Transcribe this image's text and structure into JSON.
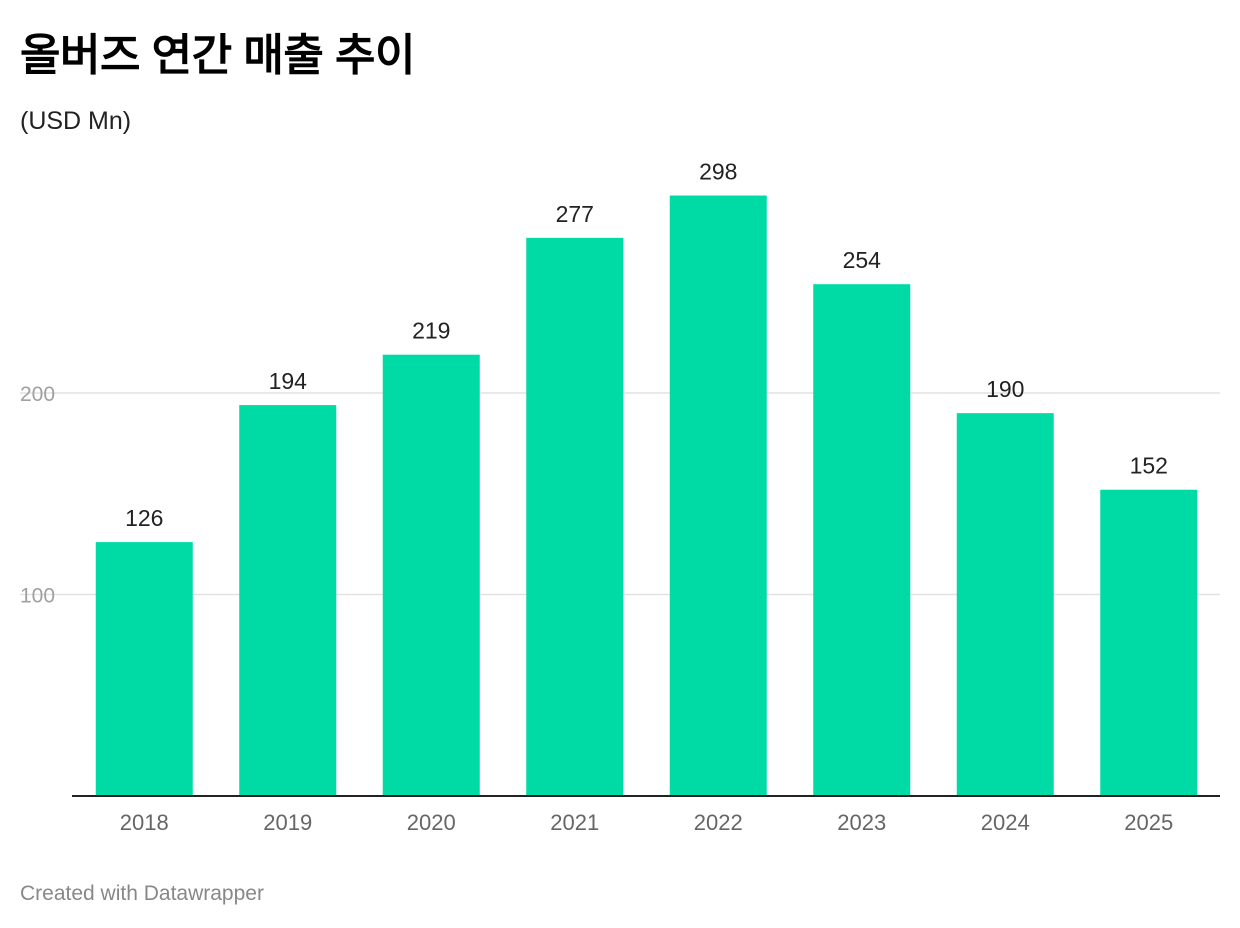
{
  "title": "올버즈 연간 매출 추이",
  "subtitle": "(USD Mn)",
  "footer": "Created with Datawrapper",
  "chart_data": {
    "type": "bar",
    "title": "올버즈 연간 매출 추이",
    "subtitle": "(USD Mn)",
    "categories": [
      "2018",
      "2019",
      "2020",
      "2021",
      "2022",
      "2023",
      "2024",
      "2025"
    ],
    "values": [
      126,
      194,
      219,
      277,
      298,
      254,
      190,
      152
    ],
    "data_labels": [
      "126",
      "194",
      "219",
      "277",
      "298",
      "254",
      "190",
      "152"
    ],
    "xlabel": "",
    "ylabel": "",
    "ylim": [
      0,
      300
    ],
    "yticks": [
      100,
      200
    ],
    "ytick_labels": [
      "100",
      "200"
    ],
    "grid": true,
    "legend": "none",
    "bar_color": "#00dba6",
    "grid_color": "#e2e2e2",
    "baseline_color": "#222222",
    "tick_label_color": "#a0a0a0",
    "x_label_color": "#666666",
    "data_label_color": "#222222"
  }
}
